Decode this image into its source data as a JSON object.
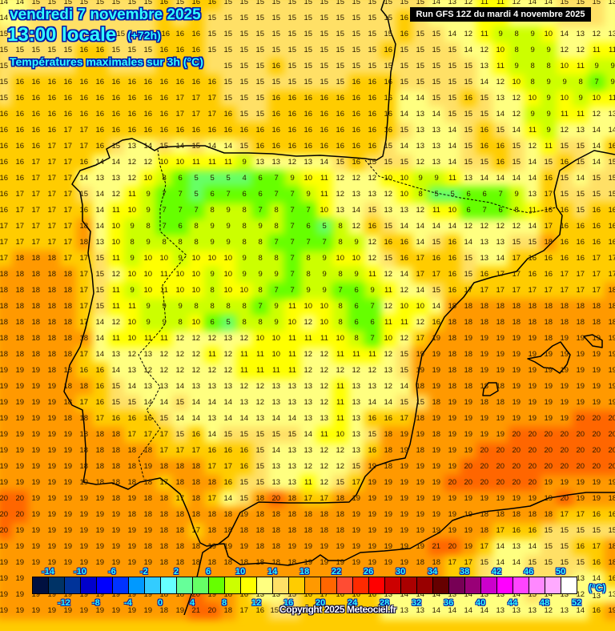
{
  "header": {
    "date": "vendredi 7 novembre 2025",
    "time": "13:00 locale",
    "lead": "(+72h)",
    "parameter": "Températures maximales sur 3h (°C)"
  },
  "run_label": "Run GFS 12Z du mardi 4 novembre 2025",
  "copyright": "Copyright 2025 Meteociel.fr",
  "colorbar": {
    "unit": "(°C)",
    "top_labels": [
      "-14",
      "-10",
      "-6",
      "-2",
      "2",
      "6",
      "10",
      "14",
      "18",
      "22",
      "26",
      "30",
      "34",
      "38",
      "42",
      "46",
      "50"
    ],
    "bottom_labels": [
      "-12",
      "-8",
      "-4",
      "0",
      "4",
      "8",
      "12",
      "16",
      "20",
      "24",
      "28",
      "32",
      "36",
      "40",
      "44",
      "48",
      "52"
    ],
    "min": -16,
    "step": 2,
    "colors": [
      "#001040",
      "#003366",
      "#003399",
      "#0000cc",
      "#0000ff",
      "#0033ff",
      "#0099ff",
      "#33ccff",
      "#66ffff",
      "#66ff99",
      "#66ff66",
      "#66ff00",
      "#ccff00",
      "#ffff00",
      "#ffff80",
      "#ffe066",
      "#ffcc00",
      "#ff9900",
      "#ff6600",
      "#ff4c33",
      "#ff2a00",
      "#ff0000",
      "#cc0000",
      "#aa0000",
      "#990000",
      "#660000",
      "#770055",
      "#990077",
      "#cc00cc",
      "#ff00ff",
      "#ff44ff",
      "#ff88ff",
      "#ffaaff",
      "#ffffff"
    ]
  },
  "grid_values": [
    [
      14,
      14,
      15,
      15,
      15,
      15,
      15,
      15,
      15,
      15,
      16,
      15,
      16,
      16,
      15,
      15,
      15,
      15,
      15,
      15,
      15,
      15,
      15,
      15,
      15,
      15,
      15,
      14,
      13,
      12,
      11,
      11,
      12,
      14,
      14,
      15,
      15,
      15,
      13
    ],
    [
      14,
      null,
      null,
      null,
      null,
      null,
      null,
      null,
      null,
      null,
      null,
      null,
      null,
      15,
      15,
      15,
      15,
      15,
      15,
      15,
      15,
      15,
      15,
      15,
      15,
      16,
      null,
      null,
      null,
      null,
      null,
      null,
      null,
      null,
      null,
      null,
      null,
      null,
      null
    ],
    [
      15,
      null,
      null,
      null,
      null,
      null,
      null,
      15,
      null,
      null,
      16,
      16,
      16,
      15,
      15,
      15,
      15,
      15,
      15,
      15,
      15,
      15,
      15,
      15,
      15,
      16,
      15,
      15,
      14,
      12,
      11,
      9,
      8,
      9,
      10,
      14,
      13,
      12,
      13
    ],
    [
      15,
      15,
      15,
      15,
      15,
      16,
      16,
      15,
      15,
      15,
      16,
      16,
      16,
      15,
      15,
      15,
      15,
      15,
      15,
      15,
      15,
      15,
      15,
      15,
      16,
      15,
      15,
      15,
      15,
      14,
      12,
      10,
      8,
      9,
      9,
      12,
      12,
      11,
      11
    ],
    [
      15,
      null,
      null,
      null,
      null,
      null,
      null,
      null,
      null,
      null,
      null,
      null,
      null,
      null,
      15,
      15,
      15,
      16,
      15,
      15,
      15,
      15,
      15,
      15,
      15,
      15,
      15,
      15,
      15,
      15,
      13,
      11,
      9,
      8,
      8,
      10,
      11,
      9,
      9
    ],
    [
      15,
      16,
      16,
      16,
      16,
      16,
      16,
      16,
      16,
      16,
      16,
      16,
      16,
      16,
      15,
      15,
      15,
      15,
      15,
      15,
      15,
      15,
      16,
      16,
      16,
      15,
      15,
      15,
      15,
      15,
      14,
      12,
      10,
      8,
      9,
      9,
      8,
      7,
      9
    ],
    [
      15,
      16,
      16,
      16,
      16,
      16,
      16,
      16,
      16,
      16,
      16,
      17,
      17,
      17,
      15,
      15,
      15,
      16,
      16,
      16,
      16,
      16,
      16,
      16,
      16,
      14,
      14,
      15,
      15,
      16,
      15,
      13,
      12,
      10,
      9,
      10,
      9,
      10,
      11
    ],
    [
      16,
      16,
      16,
      16,
      16,
      16,
      16,
      16,
      16,
      16,
      16,
      17,
      17,
      17,
      16,
      15,
      15,
      16,
      16,
      16,
      16,
      16,
      16,
      16,
      16,
      14,
      13,
      14,
      15,
      15,
      15,
      14,
      12,
      9,
      9,
      11,
      11,
      12,
      13
    ],
    [
      16,
      16,
      16,
      16,
      17,
      17,
      16,
      16,
      16,
      16,
      16,
      16,
      16,
      16,
      16,
      16,
      16,
      16,
      16,
      16,
      16,
      16,
      16,
      16,
      16,
      15,
      13,
      13,
      14,
      15,
      16,
      15,
      14,
      11,
      9,
      12,
      13,
      14,
      14
    ],
    [
      16,
      16,
      16,
      17,
      17,
      17,
      16,
      15,
      13,
      14,
      15,
      14,
      15,
      14,
      14,
      15,
      16,
      16,
      16,
      16,
      16,
      16,
      16,
      16,
      15,
      14,
      13,
      13,
      14,
      15,
      16,
      16,
      15,
      12,
      11,
      15,
      15,
      14,
      16
    ],
    [
      16,
      16,
      17,
      17,
      17,
      16,
      14,
      14,
      12,
      12,
      10,
      10,
      11,
      11,
      11,
      9,
      13,
      13,
      12,
      13,
      14,
      15,
      16,
      15,
      15,
      15,
      12,
      13,
      14,
      15,
      15,
      16,
      15,
      14,
      15,
      16,
      15,
      14,
      15
    ],
    [
      16,
      16,
      17,
      17,
      17,
      14,
      13,
      13,
      12,
      10,
      8,
      6,
      5,
      5,
      5,
      4,
      6,
      7,
      9,
      10,
      11,
      12,
      12,
      12,
      10,
      10,
      9,
      9,
      11,
      13,
      14,
      14,
      14,
      14,
      16,
      15,
      14,
      15,
      15
    ],
    [
      16,
      17,
      17,
      17,
      17,
      15,
      14,
      12,
      11,
      9,
      7,
      7,
      5,
      6,
      7,
      6,
      6,
      7,
      7,
      9,
      11,
      12,
      13,
      13,
      12,
      10,
      8,
      5,
      5,
      6,
      6,
      7,
      9,
      13,
      17,
      15,
      15,
      15,
      15
    ],
    [
      16,
      17,
      17,
      17,
      17,
      16,
      14,
      11,
      10,
      9,
      7,
      7,
      7,
      8,
      9,
      8,
      7,
      8,
      7,
      7,
      10,
      13,
      14,
      15,
      13,
      13,
      12,
      11,
      10,
      6,
      7,
      6,
      8,
      11,
      16,
      16,
      15,
      16,
      16
    ],
    [
      17,
      17,
      17,
      17,
      17,
      18,
      14,
      10,
      9,
      8,
      7,
      6,
      8,
      9,
      9,
      8,
      9,
      8,
      7,
      6,
      5,
      8,
      12,
      16,
      15,
      14,
      14,
      14,
      14,
      12,
      12,
      12,
      12,
      14,
      17,
      16,
      16,
      16,
      16
    ],
    [
      17,
      17,
      17,
      17,
      17,
      18,
      13,
      10,
      8,
      9,
      8,
      8,
      8,
      9,
      9,
      8,
      8,
      7,
      7,
      7,
      7,
      8,
      9,
      12,
      16,
      16,
      14,
      15,
      16,
      14,
      13,
      13,
      15,
      15,
      18,
      16,
      16,
      16,
      16
    ],
    [
      17,
      18,
      18,
      18,
      17,
      17,
      15,
      11,
      9,
      10,
      10,
      9,
      10,
      10,
      10,
      9,
      8,
      8,
      7,
      8,
      9,
      10,
      10,
      12,
      15,
      16,
      17,
      16,
      16,
      15,
      13,
      14,
      17,
      16,
      16,
      16,
      16,
      17,
      17
    ],
    [
      18,
      18,
      18,
      18,
      18,
      17,
      15,
      12,
      10,
      10,
      11,
      10,
      10,
      9,
      10,
      9,
      9,
      9,
      7,
      8,
      9,
      8,
      9,
      11,
      12,
      14,
      17,
      17,
      16,
      15,
      16,
      17,
      17,
      16,
      16,
      17,
      17,
      17,
      17
    ],
    [
      18,
      18,
      18,
      18,
      18,
      17,
      15,
      11,
      9,
      10,
      11,
      10,
      10,
      8,
      10,
      10,
      8,
      7,
      7,
      9,
      9,
      7,
      6,
      9,
      11,
      12,
      14,
      15,
      16,
      17,
      17,
      17,
      17,
      17,
      17,
      17,
      17,
      17,
      18
    ],
    [
      18,
      18,
      18,
      18,
      18,
      17,
      15,
      11,
      11,
      9,
      9,
      9,
      8,
      8,
      8,
      8,
      7,
      9,
      11,
      10,
      10,
      8,
      6,
      7,
      12,
      10,
      10,
      14,
      18,
      18,
      18,
      18,
      18,
      18,
      18,
      18,
      18,
      18,
      18
    ],
    [
      18,
      18,
      18,
      18,
      18,
      17,
      14,
      12,
      10,
      9,
      9,
      8,
      10,
      6,
      5,
      8,
      8,
      9,
      10,
      12,
      10,
      8,
      6,
      6,
      11,
      11,
      12,
      16,
      18,
      18,
      18,
      18,
      18,
      18,
      18,
      18,
      18,
      18,
      18
    ],
    [
      18,
      18,
      18,
      18,
      18,
      18,
      14,
      11,
      10,
      11,
      11,
      12,
      12,
      12,
      13,
      12,
      10,
      10,
      11,
      11,
      11,
      10,
      8,
      7,
      10,
      12,
      17,
      19,
      18,
      19,
      19,
      19,
      19,
      19,
      18,
      19,
      19,
      19,
      19
    ],
    [
      18,
      18,
      18,
      18,
      18,
      17,
      14,
      13,
      12,
      13,
      12,
      12,
      12,
      11,
      12,
      11,
      11,
      10,
      11,
      12,
      12,
      11,
      11,
      11,
      12,
      15,
      19,
      19,
      18,
      18,
      19,
      19,
      19,
      19,
      19,
      19,
      19,
      19,
      19
    ],
    [
      19,
      19,
      19,
      18,
      18,
      16,
      16,
      14,
      13,
      12,
      12,
      12,
      12,
      12,
      12,
      11,
      11,
      11,
      11,
      12,
      12,
      12,
      12,
      12,
      13,
      15,
      19,
      19,
      18,
      18,
      19,
      19,
      19,
      19,
      19,
      19,
      19,
      19,
      19
    ],
    [
      19,
      19,
      19,
      19,
      18,
      18,
      16,
      15,
      14,
      13,
      13,
      14,
      13,
      13,
      13,
      12,
      12,
      13,
      13,
      13,
      12,
      11,
      13,
      13,
      12,
      14,
      18,
      19,
      18,
      18,
      18,
      18,
      19,
      19,
      19,
      19,
      19,
      19,
      19
    ],
    [
      19,
      19,
      19,
      19,
      18,
      17,
      16,
      15,
      15,
      14,
      14,
      15,
      14,
      14,
      14,
      13,
      12,
      13,
      13,
      13,
      12,
      11,
      13,
      14,
      14,
      15,
      15,
      18,
      19,
      19,
      18,
      18,
      19,
      19,
      19,
      19,
      19,
      19,
      19
    ],
    [
      19,
      19,
      19,
      19,
      18,
      18,
      17,
      16,
      16,
      16,
      15,
      14,
      14,
      13,
      14,
      14,
      13,
      14,
      14,
      13,
      13,
      11,
      13,
      16,
      16,
      17,
      18,
      19,
      19,
      19,
      19,
      19,
      19,
      19,
      19,
      19,
      20,
      20,
      20
    ],
    [
      19,
      19,
      19,
      19,
      19,
      18,
      18,
      18,
      17,
      17,
      17,
      15,
      16,
      14,
      15,
      15,
      15,
      15,
      15,
      14,
      11,
      10,
      13,
      15,
      18,
      19,
      19,
      18,
      19,
      19,
      19,
      19,
      20,
      20,
      20,
      20,
      20,
      20,
      20
    ],
    [
      19,
      19,
      19,
      19,
      19,
      18,
      18,
      18,
      18,
      18,
      17,
      17,
      17,
      16,
      16,
      16,
      15,
      14,
      13,
      13,
      12,
      12,
      13,
      16,
      18,
      19,
      18,
      19,
      19,
      19,
      20,
      20,
      20,
      20,
      20,
      20,
      20,
      20,
      20
    ],
    [
      19,
      19,
      19,
      19,
      19,
      18,
      18,
      18,
      18,
      19,
      18,
      18,
      18,
      17,
      17,
      16,
      15,
      13,
      13,
      12,
      12,
      12,
      15,
      19,
      18,
      19,
      19,
      19,
      19,
      20,
      20,
      20,
      20,
      20,
      20,
      20,
      20,
      20,
      20
    ],
    [
      19,
      19,
      19,
      19,
      19,
      19,
      18,
      18,
      18,
      18,
      17,
      18,
      18,
      18,
      16,
      15,
      15,
      13,
      13,
      11,
      12,
      15,
      17,
      19,
      19,
      19,
      19,
      19,
      20,
      20,
      20,
      20,
      20,
      20,
      19,
      19,
      19,
      19,
      19
    ],
    [
      20,
      20,
      19,
      19,
      19,
      19,
      19,
      18,
      19,
      18,
      18,
      17,
      18,
      17,
      14,
      15,
      18,
      20,
      18,
      17,
      17,
      18,
      19,
      19,
      19,
      19,
      19,
      19,
      19,
      19,
      19,
      19,
      19,
      19,
      19,
      20,
      19,
      19,
      18
    ],
    [
      20,
      20,
      19,
      19,
      19,
      19,
      19,
      19,
      18,
      18,
      18,
      18,
      18,
      18,
      18,
      19,
      18,
      18,
      18,
      18,
      18,
      18,
      19,
      19,
      19,
      19,
      19,
      19,
      19,
      19,
      18,
      18,
      18,
      18,
      18,
      17,
      17,
      16,
      16
    ],
    [
      20,
      19,
      19,
      19,
      19,
      19,
      19,
      19,
      19,
      19,
      18,
      18,
      17,
      18,
      18,
      18,
      18,
      18,
      18,
      18,
      18,
      18,
      19,
      19,
      19,
      19,
      19,
      19,
      19,
      19,
      18,
      17,
      16,
      16,
      15,
      15,
      15,
      15,
      15
    ],
    [
      19,
      19,
      19,
      19,
      19,
      19,
      19,
      19,
      19,
      18,
      18,
      18,
      18,
      19,
      19,
      19,
      18,
      18,
      19,
      19,
      19,
      19,
      19,
      19,
      19,
      19,
      19,
      21,
      20,
      19,
      17,
      14,
      13,
      14,
      15,
      15,
      16,
      17,
      18
    ],
    [
      19,
      19,
      19,
      19,
      19,
      19,
      19,
      19,
      19,
      19,
      18,
      18,
      18,
      18,
      18,
      18,
      18,
      18,
      18,
      19,
      19,
      19,
      19,
      19,
      19,
      19,
      18,
      18,
      17,
      17,
      15,
      14,
      14,
      15,
      15,
      15,
      15,
      16,
      18
    ],
    [
      19,
      19,
      null,
      null,
      null,
      null,
      null,
      null,
      null,
      null,
      null,
      null,
      null,
      null,
      null,
      null,
      null,
      null,
      null,
      null,
      null,
      null,
      null,
      null,
      null,
      null,
      null,
      null,
      null,
      null,
      null,
      null,
      null,
      null,
      null,
      null,
      13,
      14,
      16
    ],
    [
      19,
      19,
      19,
      19,
      19,
      19,
      19,
      19,
      19,
      19,
      18,
      18,
      20,
      19,
      18,
      16,
      13,
      13,
      15,
      16,
      17,
      16,
      16,
      16,
      13,
      14,
      14,
      14,
      13,
      14,
      13,
      13,
      14,
      15,
      14,
      13,
      12,
      13,
      13
    ],
    [
      19,
      19,
      19,
      19,
      19,
      19,
      19,
      19,
      19,
      19,
      18,
      19,
      21,
      20,
      18,
      17,
      16,
      15,
      null,
      null,
      null,
      null,
      null,
      null,
      null,
      13,
      13,
      14,
      14,
      14,
      14,
      13,
      13,
      13,
      12,
      13,
      14,
      16,
      19
    ]
  ]
}
